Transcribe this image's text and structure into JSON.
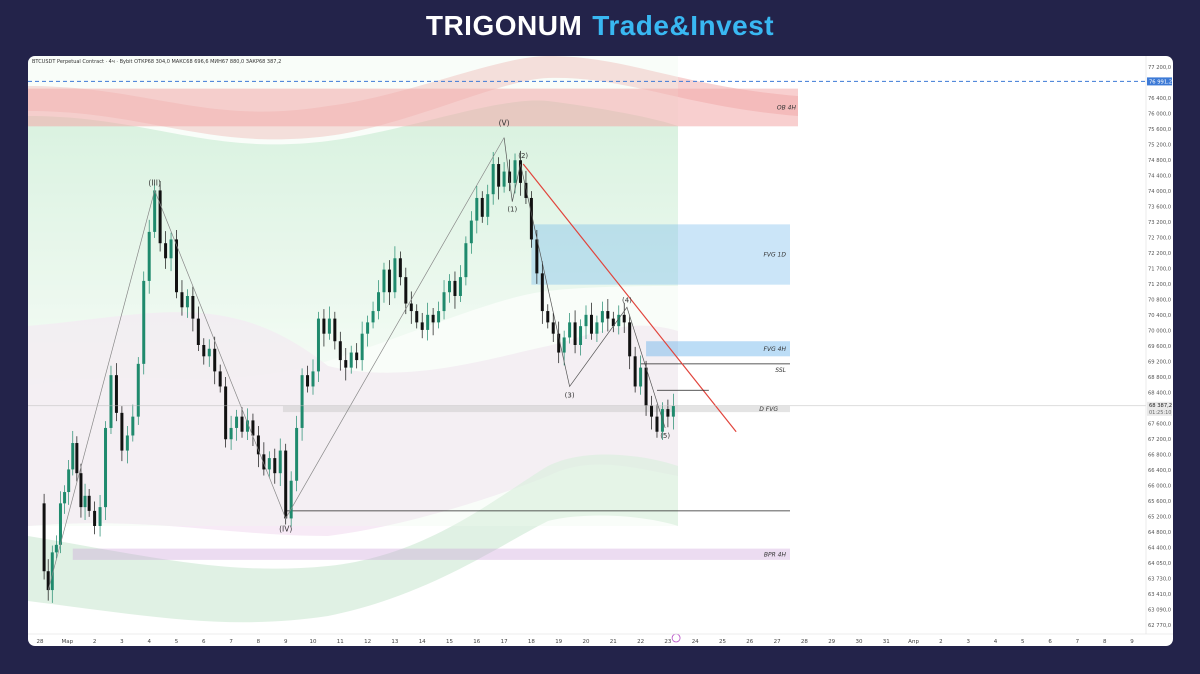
{
  "brand": {
    "name": "TRIGONUM",
    "sub": "Trade&Invest"
  },
  "header": {
    "symbol_line": "BTCUSDT Perpetual Contract · 4ч · Bybit  ОТКР68 304,0  МАКС68 696,6  МИН67 880,0  ЗАКР68 387,2"
  },
  "price_axis": {
    "ticks": [
      "77 200,0",
      "76 800,0",
      "76 400,0",
      "76 000,0",
      "75 600,0",
      "75 200,0",
      "74 800,0",
      "74 400,0",
      "74 000,0",
      "73 600,0",
      "73 200,0",
      "72 700,0",
      "72 200,0",
      "71 700,0",
      "71 200,0",
      "70 800,0",
      "70 400,0",
      "70 000,0",
      "69 600,0",
      "69 200,0",
      "68 800,0",
      "68 400,0",
      "68 000,0",
      "67 600,0",
      "67 200,0",
      "66 800,0",
      "66 400,0",
      "66 000,0",
      "65 600,0",
      "65 200,0",
      "64 800,0",
      "64 400,0",
      "64 050,0",
      "63 730,0",
      "63 410,0",
      "63 090,0",
      "62 770,0"
    ],
    "alert_label": "76 991,2",
    "last_price_label": "68 387,2",
    "countdown": "01:25:10"
  },
  "time_axis": {
    "labels": [
      "28",
      "Мар",
      "2",
      "3",
      "4",
      "5",
      "6",
      "7",
      "8",
      "9",
      "10",
      "11",
      "12",
      "13",
      "14",
      "15",
      "16",
      "17",
      "18",
      "19",
      "20",
      "21",
      "22",
      "23",
      "24",
      "25",
      "26",
      "27",
      "28",
      "29",
      "30",
      "31",
      "Апр",
      "2",
      "3",
      "4",
      "5",
      "6",
      "7",
      "8",
      "9"
    ]
  },
  "zones": {
    "ob4h": "OB 4H",
    "fvg1d": "FVG 1D",
    "fvg4h": "FVG 4H",
    "ssl": "SSL",
    "dfvg": "D FVG",
    "bpr4h": "BPR 4H"
  },
  "waves": {
    "w3": "(III)",
    "w4": "(IV)",
    "w5": "(V)",
    "s1": "(1)",
    "s2": "(2)",
    "s3": "(3)",
    "s4": "(4)",
    "s5": "(5)"
  },
  "colors": {
    "up": "#1f8a6d",
    "down": "#111111",
    "resist": "#e1443c",
    "support": "#5fcc8a",
    "fvg": "#6bb4ea",
    "bpr": "#c89ad8",
    "alert": "#3d7ad6"
  },
  "chart_data": {
    "type": "candlestick",
    "title": "BTCUSDT Perpetual Contract · 4ч · Bybit",
    "ohlc_last": {
      "open": 68304.0,
      "high": 68696.6,
      "low": 67880.0,
      "close": 68387.2
    },
    "ylim": [
      62600,
      77400
    ],
    "x_categories": [
      "28",
      "Мар",
      "2",
      "3",
      "4",
      "5",
      "6",
      "7",
      "8",
      "9",
      "10",
      "11",
      "12",
      "13",
      "14",
      "15",
      "16",
      "17",
      "18",
      "19",
      "20",
      "21",
      "22",
      "23"
    ],
    "path": [
      [
        0,
        65800
      ],
      [
        0.15,
        64000
      ],
      [
        0.3,
        63500
      ],
      [
        0.45,
        64500
      ],
      [
        0.6,
        64700
      ],
      [
        0.75,
        65800
      ],
      [
        0.9,
        66100
      ],
      [
        1.05,
        66700
      ],
      [
        1.2,
        67400
      ],
      [
        1.35,
        66600
      ],
      [
        1.5,
        65700
      ],
      [
        1.65,
        66000
      ],
      [
        1.8,
        65600
      ],
      [
        2.0,
        65200
      ],
      [
        2.2,
        65700
      ],
      [
        2.4,
        67800
      ],
      [
        2.6,
        69200
      ],
      [
        2.8,
        68200
      ],
      [
        3.0,
        67200
      ],
      [
        3.2,
        67600
      ],
      [
        3.4,
        68100
      ],
      [
        3.6,
        69500
      ],
      [
        3.8,
        71700
      ],
      [
        4.0,
        73000
      ],
      [
        4.2,
        74100
      ],
      [
        4.4,
        72700
      ],
      [
        4.6,
        72300
      ],
      [
        4.8,
        72800
      ],
      [
        5.0,
        71400
      ],
      [
        5.2,
        71000
      ],
      [
        5.4,
        71300
      ],
      [
        5.6,
        70700
      ],
      [
        5.8,
        70000
      ],
      [
        6.0,
        69700
      ],
      [
        6.2,
        69900
      ],
      [
        6.4,
        69300
      ],
      [
        6.6,
        68900
      ],
      [
        6.8,
        67500
      ],
      [
        7.0,
        67800
      ],
      [
        7.2,
        68100
      ],
      [
        7.4,
        67700
      ],
      [
        7.6,
        68000
      ],
      [
        7.8,
        67600
      ],
      [
        8.0,
        67100
      ],
      [
        8.2,
        66700
      ],
      [
        8.4,
        67000
      ],
      [
        8.6,
        66600
      ],
      [
        8.8,
        67200
      ],
      [
        9.0,
        65400
      ],
      [
        9.2,
        66400
      ],
      [
        9.4,
        67800
      ],
      [
        9.6,
        69200
      ],
      [
        9.8,
        68900
      ],
      [
        10.0,
        69300
      ],
      [
        10.2,
        70700
      ],
      [
        10.4,
        70300
      ],
      [
        10.6,
        70700
      ],
      [
        10.8,
        70100
      ],
      [
        11.0,
        69600
      ],
      [
        11.2,
        69400
      ],
      [
        11.4,
        69800
      ],
      [
        11.6,
        69600
      ],
      [
        11.8,
        70300
      ],
      [
        12.0,
        70600
      ],
      [
        12.2,
        70900
      ],
      [
        12.4,
        71400
      ],
      [
        12.6,
        72000
      ],
      [
        12.8,
        71400
      ],
      [
        13.0,
        72300
      ],
      [
        13.2,
        71800
      ],
      [
        13.4,
        71100
      ],
      [
        13.6,
        70900
      ],
      [
        13.8,
        70600
      ],
      [
        14.0,
        70400
      ],
      [
        14.2,
        70800
      ],
      [
        14.4,
        70600
      ],
      [
        14.6,
        70900
      ],
      [
        14.8,
        71400
      ],
      [
        15.0,
        71700
      ],
      [
        15.2,
        71300
      ],
      [
        15.4,
        71800
      ],
      [
        15.6,
        72700
      ],
      [
        15.8,
        73300
      ],
      [
        16.0,
        73900
      ],
      [
        16.2,
        73400
      ],
      [
        16.4,
        74000
      ],
      [
        16.6,
        74800
      ],
      [
        16.8,
        74200
      ],
      [
        17.0,
        74600
      ],
      [
        17.2,
        74300
      ],
      [
        17.4,
        74900
      ],
      [
        17.6,
        74300
      ],
      [
        17.8,
        73900
      ],
      [
        18.0,
        72800
      ],
      [
        18.2,
        71900
      ],
      [
        18.4,
        70900
      ],
      [
        18.6,
        70600
      ],
      [
        18.8,
        70300
      ],
      [
        19.0,
        69800
      ],
      [
        19.2,
        70200
      ],
      [
        19.4,
        70600
      ],
      [
        19.6,
        70000
      ],
      [
        19.8,
        70500
      ],
      [
        20.0,
        70800
      ],
      [
        20.2,
        70300
      ],
      [
        20.4,
        70600
      ],
      [
        20.6,
        70900
      ],
      [
        20.8,
        70700
      ],
      [
        21.0,
        70500
      ],
      [
        21.2,
        70800
      ],
      [
        21.4,
        70600
      ],
      [
        21.6,
        69700
      ],
      [
        21.8,
        68900
      ],
      [
        22.0,
        69400
      ],
      [
        22.2,
        68400
      ],
      [
        22.4,
        68100
      ],
      [
        22.6,
        67700
      ],
      [
        22.8,
        68300
      ],
      [
        23.0,
        68100
      ],
      [
        23.2,
        68387
      ]
    ],
    "annotations": {
      "OB 4H": [
        75800,
        76800
      ],
      "FVG 1D": [
        71600,
        73200
      ],
      "FVG 4H": [
        69700,
        70100
      ],
      "SSL": 69500,
      "D FVG": 68300,
      "BPR 4H": [
        64300,
        64600
      ],
      "alert_line": 76991.2,
      "support_line": 65600
    }
  }
}
